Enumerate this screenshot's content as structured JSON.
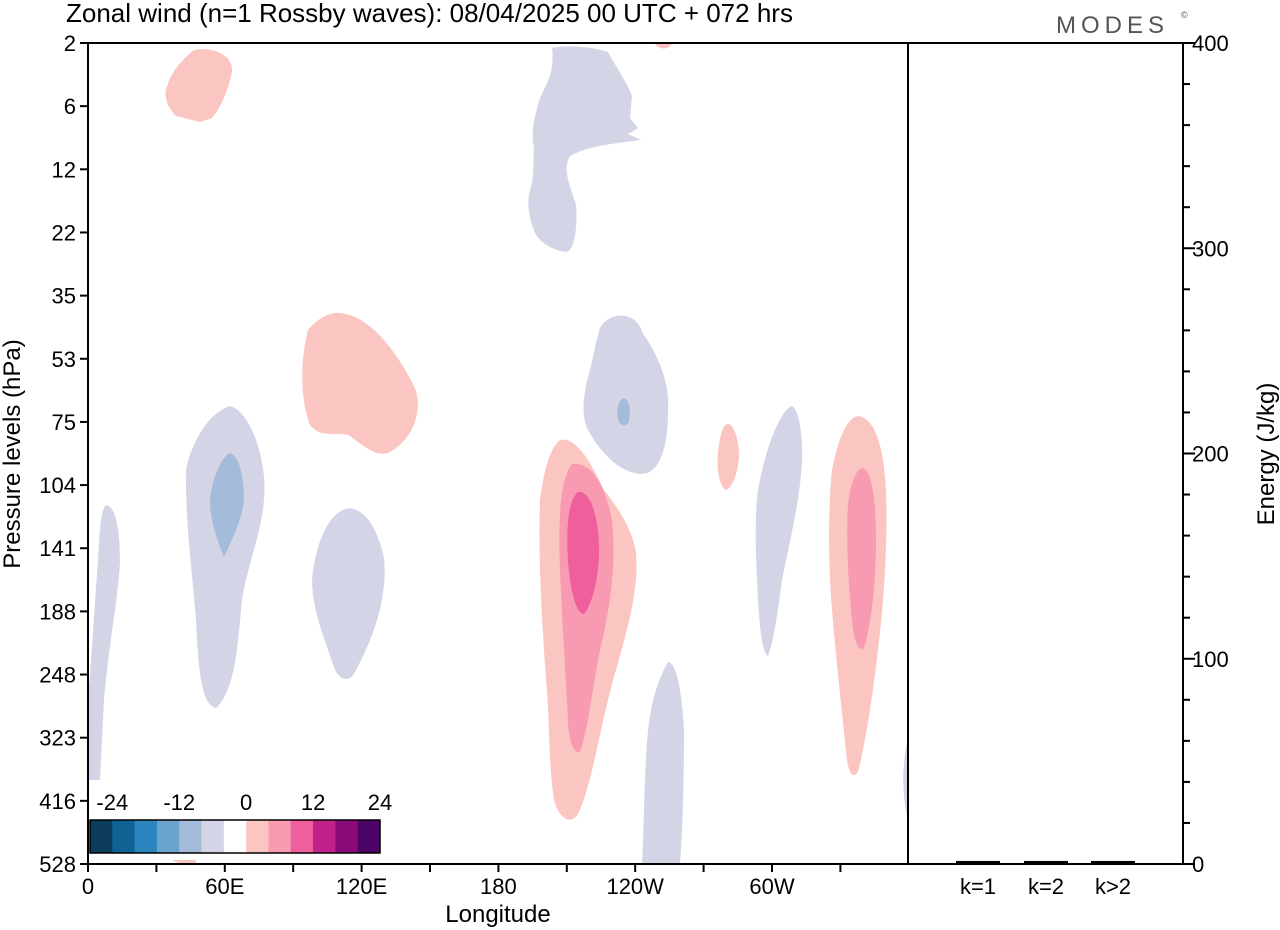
{
  "header": {
    "title": "Zonal wind (n=1 Rossby waves):  08/04/2025  00 UTC  + 072 hrs",
    "brand": "MODES",
    "brand_mark": "©"
  },
  "chart_data": [
    {
      "type": "contour",
      "xlabel": "Longitude",
      "ylabel": "Pressure levels (hPa)",
      "x_ticks": [
        "0",
        "60E",
        "120E",
        "180",
        "120W",
        "60W"
      ],
      "y_ticks": [
        "2",
        "6",
        "12",
        "22",
        "35",
        "53",
        "75",
        "104",
        "141",
        "188",
        "248",
        "323",
        "416",
        "528"
      ],
      "colorbar": {
        "labels": [
          "-24",
          "-12",
          "0",
          "12",
          "24"
        ],
        "colors": [
          "#0d3d5c",
          "#0f6394",
          "#2b86bf",
          "#6aa3cc",
          "#a4bbd9",
          "#d3d5e6",
          "#ffffff",
          "#fbc6c1",
          "#f89ab1",
          "#ee5f9c",
          "#c2208a",
          "#8b0a79",
          "#4b0368"
        ]
      },
      "fill_colors": {
        "neg_weak": "#d3d5e6",
        "neg_mid": "#a4bbd9",
        "pos_weak": "#fbc6c1",
        "pos_mid": "#f89ab1",
        "pos_strong": "#ee5f9c"
      }
    },
    {
      "type": "bar",
      "ylabel": "Energy (J/kg)",
      "categories": [
        "k=1",
        "k=2",
        "k>2"
      ],
      "values": [
        1,
        1,
        1
      ],
      "ylim": [
        0,
        400
      ],
      "y_ticks": [
        "0",
        "100",
        "200",
        "300",
        "400"
      ]
    }
  ]
}
